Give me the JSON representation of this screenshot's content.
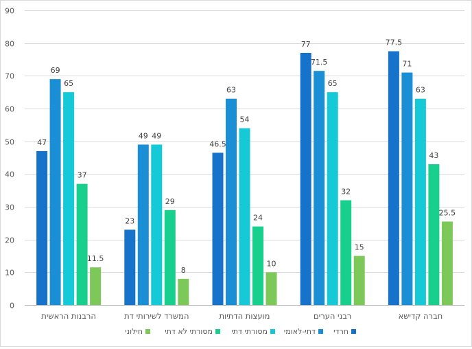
{
  "chart_data": {
    "type": "bar",
    "title": "",
    "xlabel": "",
    "ylabel": "",
    "ylim": [
      0,
      90
    ],
    "ytick_step": 10,
    "grid": true,
    "legend_position": "bottom",
    "categories": [
      "הרבנות הראשית",
      "המשרד לשירותי דת",
      "מועצות הדתיות",
      "רבני הערים",
      "חברה קדישא"
    ],
    "series": [
      {
        "name": "חרדי",
        "color": "#1772c9",
        "values": [
          47,
          23,
          46.5,
          77,
          77.5
        ]
      },
      {
        "name": "דתי-לאומי",
        "color": "#1a8fd6",
        "values": [
          69,
          49,
          63,
          71.5,
          71
        ]
      },
      {
        "name": "מסורתי דתי",
        "color": "#15c9d6",
        "values": [
          65,
          49,
          54,
          65,
          63
        ]
      },
      {
        "name": "מסורתי לא דתי",
        "color": "#19cf8e",
        "values": [
          37,
          29,
          24,
          32,
          43
        ]
      },
      {
        "name": "חילוני",
        "color": "#7cc95a",
        "values": [
          11.5,
          8,
          10,
          15,
          25.5
        ]
      }
    ]
  }
}
